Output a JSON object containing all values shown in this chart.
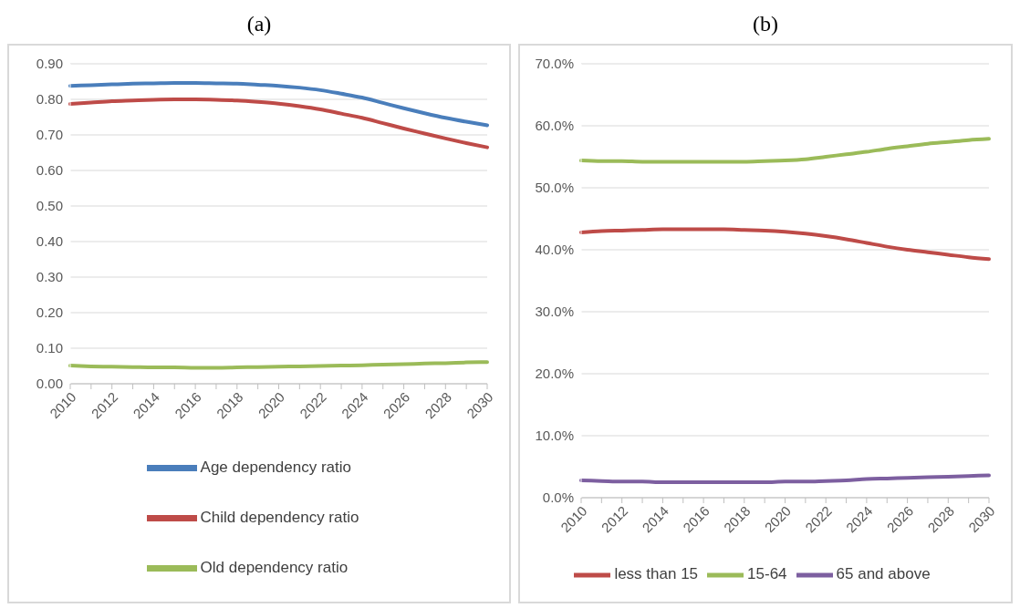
{
  "chart_data": [
    {
      "type": "line",
      "title": "(a)",
      "categories": [
        "2010",
        null,
        "2012",
        null,
        "2014",
        null,
        "2016",
        null,
        "2018",
        null,
        "2020",
        null,
        "2022",
        null,
        "2024",
        null,
        "2026",
        null,
        "2028",
        null,
        "2030"
      ],
      "series": [
        {
          "name": "Age dependency  ratio",
          "color": "#4a7ebb",
          "values": [
            0.838,
            0.84,
            0.842,
            0.844,
            0.845,
            0.846,
            0.846,
            0.845,
            0.844,
            0.841,
            0.838,
            0.833,
            0.826,
            0.816,
            0.805,
            0.79,
            0.775,
            0.761,
            0.748,
            0.737,
            0.727
          ]
        },
        {
          "name": "Child dependency ratio",
          "color": "#be4b48",
          "values": [
            0.787,
            0.791,
            0.795,
            0.797,
            0.799,
            0.8,
            0.8,
            0.799,
            0.797,
            0.793,
            0.788,
            0.781,
            0.772,
            0.76,
            0.748,
            0.733,
            0.718,
            0.704,
            0.69,
            0.677,
            0.665
          ]
        },
        {
          "name": "Old dependency ratio",
          "color": "#9bbb59",
          "values": [
            0.051,
            0.049,
            0.048,
            0.047,
            0.046,
            0.046,
            0.045,
            0.045,
            0.046,
            0.047,
            0.048,
            0.049,
            0.05,
            0.051,
            0.052,
            0.054,
            0.055,
            0.057,
            0.058,
            0.06,
            0.061
          ]
        }
      ],
      "ylim": [
        0,
        0.9
      ],
      "yticks": [
        {
          "value": 0,
          "label": "0.00"
        },
        {
          "value": 0.1,
          "label": "0.10"
        },
        {
          "value": 0.2,
          "label": "0.20"
        },
        {
          "value": 0.3,
          "label": "0.30"
        },
        {
          "value": 0.4,
          "label": "0.40"
        },
        {
          "value": 0.5,
          "label": "0.50"
        },
        {
          "value": 0.6,
          "label": "0.60"
        },
        {
          "value": 0.7,
          "label": "0.70"
        },
        {
          "value": 0.8,
          "label": "0.80"
        },
        {
          "value": 0.9,
          "label": "0.90"
        }
      ],
      "grid": "y",
      "legend": "bottom"
    },
    {
      "type": "line",
      "title": "(b)",
      "categories": [
        "2010",
        null,
        "2012",
        null,
        "2014",
        null,
        "2016",
        null,
        "2018",
        null,
        "2020",
        null,
        "2022",
        null,
        "2024",
        null,
        "2026",
        null,
        "2028",
        null,
        "2030"
      ],
      "series": [
        {
          "name": "less than 15",
          "color": "#be4b48",
          "values": [
            42.8,
            43.0,
            43.1,
            43.2,
            43.3,
            43.3,
            43.3,
            43.3,
            43.2,
            43.1,
            42.9,
            42.6,
            42.2,
            41.7,
            41.1,
            40.5,
            40.0,
            39.6,
            39.2,
            38.8,
            38.5
          ]
        },
        {
          "name": "15-64",
          "color": "#9bbb59",
          "values": [
            54.4,
            54.3,
            54.3,
            54.2,
            54.2,
            54.2,
            54.2,
            54.2,
            54.2,
            54.3,
            54.4,
            54.6,
            55.0,
            55.4,
            55.8,
            56.3,
            56.7,
            57.1,
            57.4,
            57.7,
            57.9
          ]
        },
        {
          "name": "65 and above",
          "color": "#7d5fa0",
          "values": [
            2.8,
            2.7,
            2.6,
            2.6,
            2.5,
            2.5,
            2.5,
            2.5,
            2.5,
            2.5,
            2.6,
            2.6,
            2.7,
            2.8,
            3.0,
            3.1,
            3.2,
            3.3,
            3.4,
            3.5,
            3.6
          ]
        }
      ],
      "ylim": [
        0,
        70
      ],
      "yticks": [
        {
          "value": 0,
          "label": "0.0%"
        },
        {
          "value": 10,
          "label": "10.0%"
        },
        {
          "value": 20,
          "label": "20.0%"
        },
        {
          "value": 30,
          "label": "30.0%"
        },
        {
          "value": 40,
          "label": "40.0%"
        },
        {
          "value": 50,
          "label": "50.0%"
        },
        {
          "value": 60,
          "label": "60.0%"
        },
        {
          "value": 70,
          "label": "70.0%"
        }
      ],
      "grid": "y",
      "legend": "bottom"
    }
  ]
}
